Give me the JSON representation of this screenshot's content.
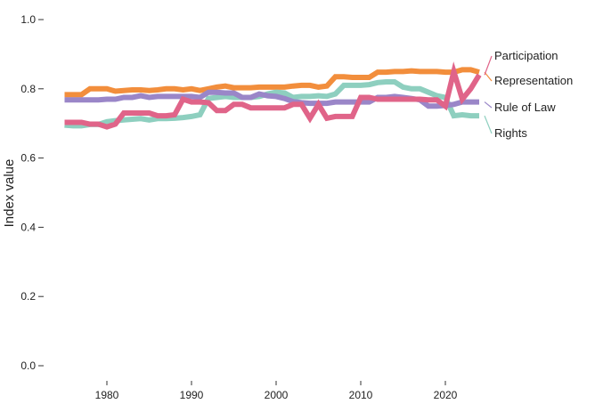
{
  "chart_data": {
    "type": "line",
    "title": "",
    "xlabel": "",
    "ylabel": "Index value",
    "xlim": [
      1975,
      2024
    ],
    "ylim": [
      0,
      1
    ],
    "x_ticks": [
      "1980",
      "1990",
      "2000",
      "2010",
      "2020"
    ],
    "x_tick_values": [
      1980,
      1990,
      2000,
      2010,
      2020
    ],
    "y_ticks": [
      "0.0",
      "0.2",
      "0.4",
      "0.6",
      "0.8",
      "1.0"
    ],
    "y_tick_values": [
      0,
      0.2,
      0.4,
      0.6,
      0.8,
      1.0
    ],
    "grid": false,
    "legend": "right, direct labels",
    "x": [
      1975,
      1976,
      1977,
      1978,
      1979,
      1980,
      1981,
      1982,
      1983,
      1984,
      1985,
      1986,
      1987,
      1988,
      1989,
      1990,
      1991,
      1992,
      1993,
      1994,
      1995,
      1996,
      1997,
      1998,
      1999,
      2000,
      2001,
      2002,
      2003,
      2004,
      2005,
      2006,
      2007,
      2008,
      2009,
      2010,
      2011,
      2012,
      2013,
      2014,
      2015,
      2016,
      2017,
      2018,
      2019,
      2020,
      2021,
      2022,
      2023,
      2024
    ],
    "series": [
      {
        "name": "Representation",
        "color": "#f28e3c",
        "values": [
          0.783,
          0.783,
          0.783,
          0.8,
          0.8,
          0.8,
          0.793,
          0.795,
          0.797,
          0.797,
          0.795,
          0.797,
          0.8,
          0.8,
          0.797,
          0.8,
          0.795,
          0.8,
          0.805,
          0.808,
          0.803,
          0.803,
          0.803,
          0.805,
          0.805,
          0.805,
          0.805,
          0.808,
          0.81,
          0.81,
          0.805,
          0.808,
          0.835,
          0.835,
          0.833,
          0.833,
          0.833,
          0.848,
          0.848,
          0.85,
          0.85,
          0.852,
          0.85,
          0.85,
          0.85,
          0.848,
          0.848,
          0.855,
          0.855,
          0.848
        ]
      },
      {
        "name": "Participation",
        "color": "#e06489",
        "values": [
          0.703,
          0.703,
          0.703,
          0.698,
          0.698,
          0.69,
          0.698,
          0.73,
          0.73,
          0.73,
          0.73,
          0.722,
          0.722,
          0.725,
          0.77,
          0.762,
          0.762,
          0.76,
          0.737,
          0.737,
          0.755,
          0.755,
          0.745,
          0.745,
          0.745,
          0.745,
          0.745,
          0.755,
          0.755,
          0.715,
          0.755,
          0.715,
          0.72,
          0.72,
          0.72,
          0.775,
          0.775,
          0.77,
          0.77,
          0.77,
          0.77,
          0.77,
          0.77,
          0.768,
          0.768,
          0.75,
          0.85,
          0.77,
          0.8,
          0.84
        ]
      },
      {
        "name": "Rule of Law",
        "color": "#9a86c8",
        "values": [
          0.768,
          0.768,
          0.768,
          0.768,
          0.768,
          0.77,
          0.77,
          0.775,
          0.775,
          0.78,
          0.775,
          0.778,
          0.778,
          0.778,
          0.778,
          0.778,
          0.775,
          0.79,
          0.79,
          0.788,
          0.788,
          0.775,
          0.775,
          0.785,
          0.78,
          0.778,
          0.772,
          0.763,
          0.76,
          0.758,
          0.758,
          0.758,
          0.762,
          0.762,
          0.762,
          0.762,
          0.762,
          0.775,
          0.775,
          0.778,
          0.775,
          0.772,
          0.768,
          0.75,
          0.75,
          0.752,
          0.755,
          0.762,
          0.762,
          0.762
        ]
      },
      {
        "name": "Rights",
        "color": "#8ecfbf",
        "values": [
          0.695,
          0.693,
          0.693,
          0.697,
          0.697,
          0.705,
          0.708,
          0.71,
          0.712,
          0.714,
          0.71,
          0.714,
          0.714,
          0.715,
          0.717,
          0.72,
          0.725,
          0.772,
          0.775,
          0.778,
          0.775,
          0.775,
          0.775,
          0.778,
          0.785,
          0.79,
          0.788,
          0.775,
          0.778,
          0.778,
          0.78,
          0.778,
          0.785,
          0.81,
          0.81,
          0.81,
          0.812,
          0.818,
          0.82,
          0.82,
          0.805,
          0.8,
          0.8,
          0.79,
          0.78,
          0.775,
          0.722,
          0.725,
          0.722,
          0.722
        ]
      }
    ]
  }
}
